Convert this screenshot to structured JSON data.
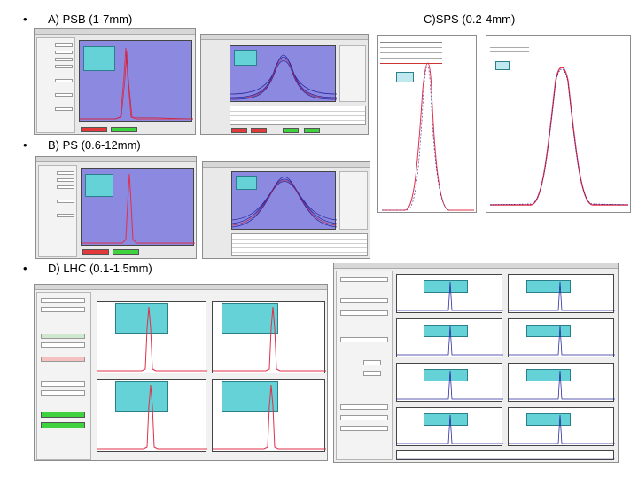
{
  "slide": {
    "bullet_symbol": "•",
    "section_a": "A) PSB (1-7mm)",
    "section_b": "B) PS (0.6-12mm)",
    "section_c": "C)SPS (0.2-4mm)",
    "section_d": "D) LHC (0.1-1.5mm)"
  },
  "colors": {
    "plot_violet": "#8b89e0",
    "fit_note": "#64d2d6",
    "profile_red": "#e0304a",
    "profile_blue": "#2a2aa0",
    "status_red": "#e23a3a",
    "status_green": "#3fd23f"
  }
}
